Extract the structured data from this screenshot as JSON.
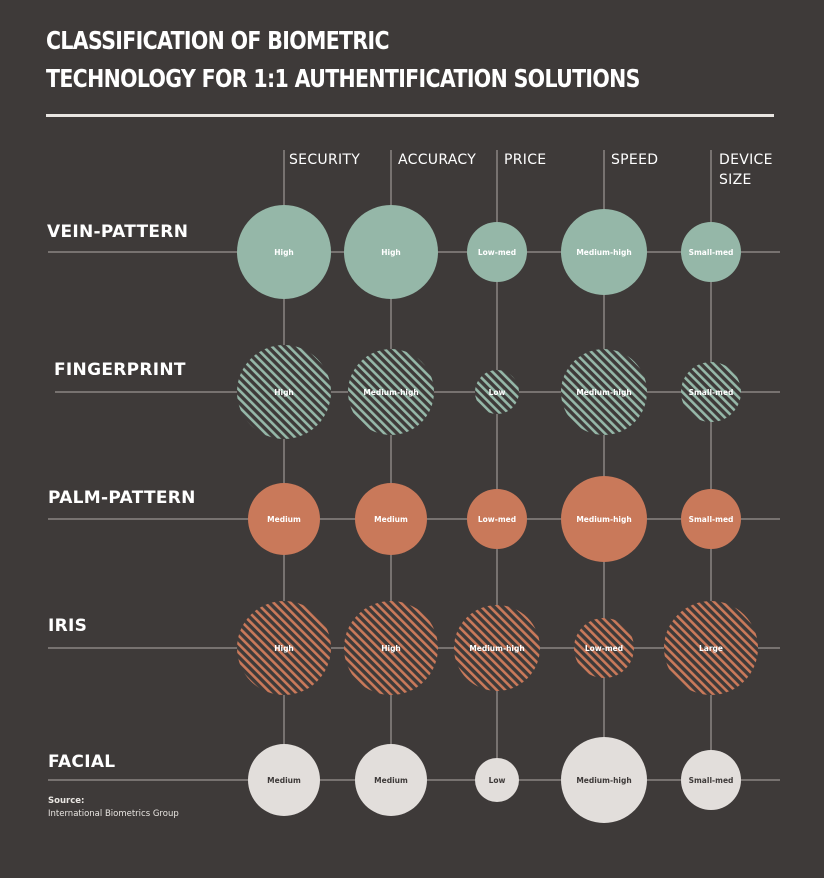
{
  "title_lines": [
    "CLASSIFICATION OF BIOMETRIC",
    "TECHNOLOGY FOR 1:1 AUTHENTIFICATION SOLUTIONS"
  ],
  "columns": [
    {
      "label_lines": [
        "SECURITY"
      ]
    },
    {
      "label_lines": [
        "ACCURACY"
      ]
    },
    {
      "label_lines": [
        "PRICE"
      ]
    },
    {
      "label_lines": [
        "SPEED"
      ]
    },
    {
      "label_lines": [
        "DEVICE",
        "SIZE"
      ]
    }
  ],
  "rows": [
    {
      "label": "VEIN-PATTERN",
      "color": "#95b7a8",
      "pattern": "solid",
      "ratings": [
        "High",
        "High",
        "Low-med",
        "Medium-high",
        "Small-med"
      ]
    },
    {
      "label": "FINGERPRINT",
      "color": "#95b7a8",
      "pattern": "hatched",
      "ratings": [
        "High",
        "Medium-high",
        "Low",
        "Medium-high",
        "Small-med"
      ]
    },
    {
      "label": "PALM-PATTERN",
      "color": "#c9795a",
      "pattern": "solid",
      "ratings": [
        "Medium",
        "Medium",
        "Low-med",
        "Medium-high",
        "Small-med"
      ]
    },
    {
      "label": "IRIS",
      "color": "#c9795a",
      "pattern": "hatched",
      "ratings": [
        "High",
        "High",
        "Medium-high",
        "Low-med",
        "Large"
      ]
    },
    {
      "label": "FACIAL",
      "color": "#e2dedb",
      "pattern": "solid",
      "ratings": [
        "Medium",
        "Medium",
        "Low",
        "Medium-high",
        "Small-med"
      ]
    }
  ],
  "rating_scale": {
    "Low": 1,
    "Low-med": 2,
    "Small-med": 2,
    "Medium": 3,
    "Medium-high": 4,
    "High": 5,
    "Large": 5
  },
  "colors": {
    "background": "#3e3a39",
    "grid_line": "#8a8583",
    "vein_fingerprint": "#95b7a8",
    "palm_iris": "#c9795a",
    "facial": "#e2dedb"
  },
  "source": {
    "heading": "Source:",
    "text": "International Biometrics Group"
  }
}
